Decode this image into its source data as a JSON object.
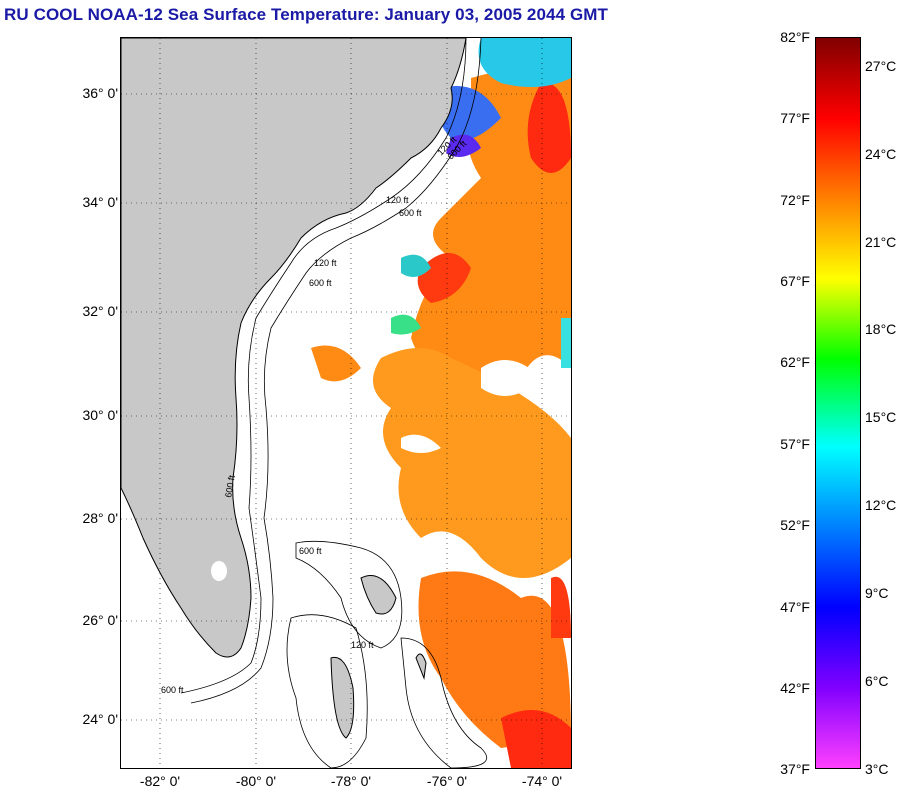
{
  "title": "RU COOL  NOAA-12  Sea Surface Temperature:  January 03, 2005 2044 GMT",
  "map": {
    "lat_labels": [
      "36° 0'",
      "34° 0'",
      "32° 0'",
      "30° 0'",
      "28° 0'",
      "26° 0'",
      "24° 0'"
    ],
    "lon_labels": [
      "-82° 0'",
      "-80° 0'",
      "-78° 0'",
      "-76° 0'",
      "-74° 0'"
    ],
    "contour_labels": [
      "120 ft",
      "600 ft",
      "120 ft",
      "600 ft",
      "120 ft",
      "600 ft",
      "600 ft",
      "600 ft",
      "120 ft",
      "600 ft"
    ],
    "land_color": "#c8c8c8",
    "grid": "dotted"
  },
  "colorbar": {
    "fahrenheit_labels": [
      "82°F",
      "77°F",
      "72°F",
      "67°F",
      "62°F",
      "57°F",
      "52°F",
      "47°F",
      "42°F",
      "37°F"
    ],
    "celsius_labels": [
      "27°C",
      "24°C",
      "21°C",
      "18°C",
      "15°C",
      "12°C",
      "9°C",
      "6°C",
      "3°C"
    ],
    "colors": [
      "#800000",
      "#ff0000",
      "#ff8000",
      "#ffff00",
      "#00ff00",
      "#00ffff",
      "#0080ff",
      "#0000ff",
      "#8000ff",
      "#ff40ff"
    ]
  }
}
